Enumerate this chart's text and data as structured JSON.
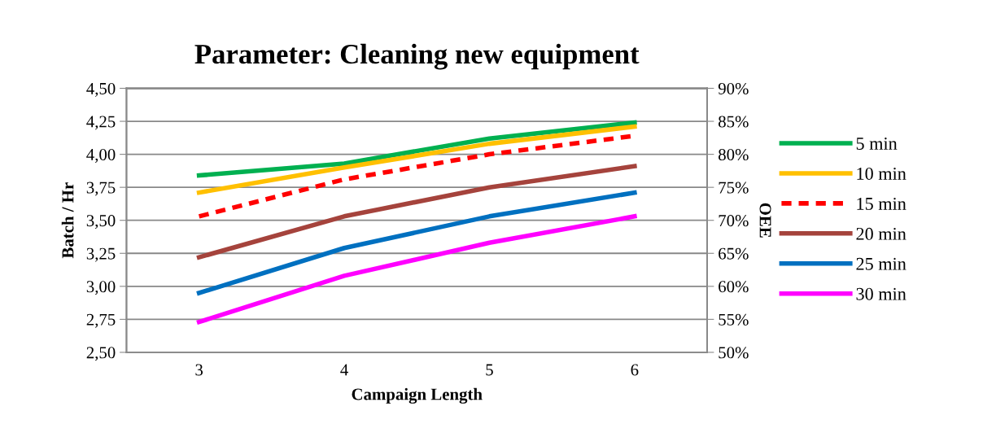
{
  "chart_data": {
    "type": "line",
    "title": "Parameter: Cleaning new equipment",
    "xlabel": "Campaign Length",
    "ylabel": "Batch / Hr",
    "y2label": "OEE",
    "categories": [
      "3",
      "4",
      "5",
      "6"
    ],
    "series": [
      {
        "name": "5 min",
        "color": "#00b050",
        "values": [
          3.84,
          3.93,
          4.12,
          4.24
        ]
      },
      {
        "name": "10 min",
        "color": "#ffc000",
        "values": [
          3.71,
          3.9,
          4.08,
          4.21
        ]
      },
      {
        "name": "15 min",
        "color": "#ff0000",
        "values": [
          3.53,
          3.81,
          4.0,
          4.14
        ],
        "line_style": "dashed"
      },
      {
        "name": "20 min",
        "color": "#a5433c",
        "values": [
          3.22,
          3.53,
          3.75,
          3.91
        ]
      },
      {
        "name": "25 min",
        "color": "#0070c0",
        "values": [
          2.95,
          3.29,
          3.53,
          3.71
        ]
      },
      {
        "name": "30 min",
        "color": "#ff00ff",
        "values": [
          2.73,
          3.08,
          3.33,
          3.53
        ]
      }
    ],
    "ylim": [
      2.5,
      4.5
    ],
    "yticks": [
      {
        "value": 2.5,
        "label": "2,50"
      },
      {
        "value": 2.75,
        "label": "2,75"
      },
      {
        "value": 3.0,
        "label": "3,00"
      },
      {
        "value": 3.25,
        "label": "3,25"
      },
      {
        "value": 3.5,
        "label": "3,50"
      },
      {
        "value": 3.75,
        "label": "3,75"
      },
      {
        "value": 4.0,
        "label": "4,00"
      },
      {
        "value": 4.25,
        "label": "4,25"
      },
      {
        "value": 4.5,
        "label": "4,50"
      }
    ],
    "y2lim": [
      50,
      90
    ],
    "y2ticks": [
      {
        "value": 50,
        "label": "50%"
      },
      {
        "value": 55,
        "label": "55%"
      },
      {
        "value": 60,
        "label": "60%"
      },
      {
        "value": 65,
        "label": "65%"
      },
      {
        "value": 70,
        "label": "70%"
      },
      {
        "value": 75,
        "label": "75%"
      },
      {
        "value": 80,
        "label": "80%"
      },
      {
        "value": 85,
        "label": "85%"
      },
      {
        "value": 90,
        "label": "90%"
      }
    ],
    "grid": "y",
    "legend": "right",
    "line_style": "solid",
    "marker": "none"
  }
}
